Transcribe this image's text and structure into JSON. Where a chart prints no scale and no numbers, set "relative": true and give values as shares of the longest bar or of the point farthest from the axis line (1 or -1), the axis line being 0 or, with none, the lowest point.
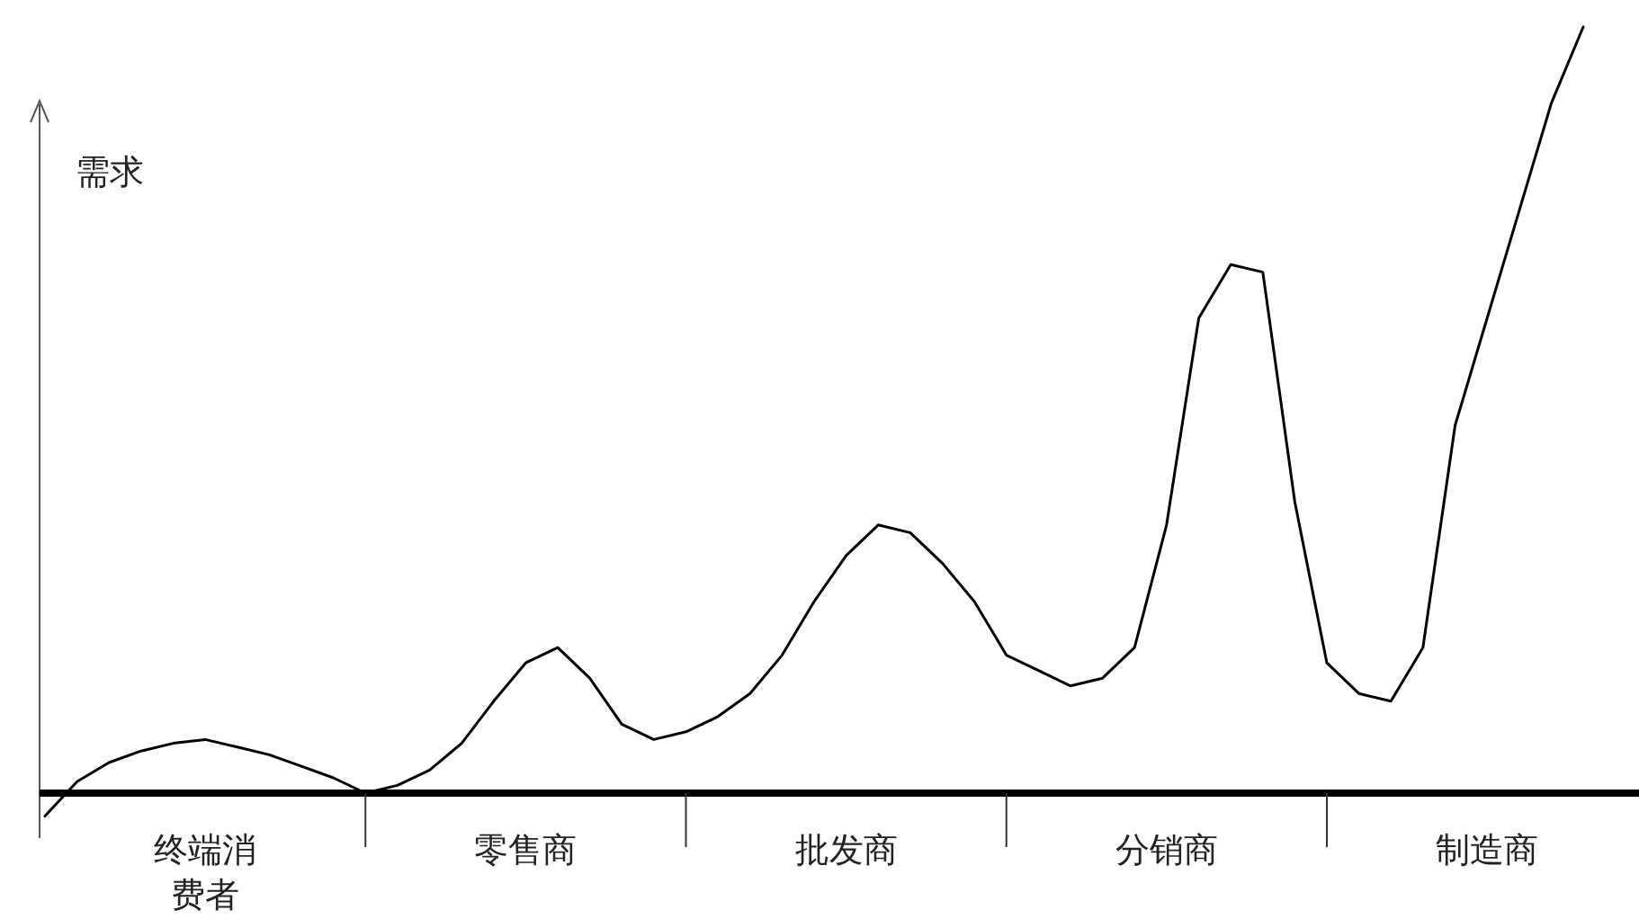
{
  "chart_data": {
    "type": "line",
    "relative": true,
    "ylabel": "需求",
    "categories": [
      null,
      null,
      null,
      null,
      null,
      "终端消费者",
      null,
      null,
      null,
      null,
      null,
      null,
      null,
      null,
      null,
      "零售商",
      null,
      null,
      null,
      null,
      null,
      null,
      null,
      null,
      null,
      "批发商",
      null,
      null,
      null,
      null,
      null,
      null,
      null,
      null,
      null,
      "分销商",
      null,
      null,
      null,
      null,
      null,
      null,
      null,
      null,
      null,
      "制造商",
      null,
      null,
      null
    ],
    "series": [
      {
        "color": "#000000",
        "values": [
          -0.03,
          0.015,
          0.04,
          0.055,
          0.065,
          0.07,
          0.06,
          0.05,
          0.035,
          0.02,
          0.0,
          0.01,
          0.03,
          0.065,
          0.12,
          0.17,
          0.19,
          0.15,
          0.09,
          0.07,
          0.08,
          0.1,
          0.13,
          0.18,
          0.25,
          0.31,
          0.35,
          0.34,
          0.3,
          0.25,
          0.18,
          0.16,
          0.14,
          0.15,
          0.19,
          0.35,
          0.62,
          0.69,
          0.68,
          0.38,
          0.17,
          0.13,
          0.12,
          0.19,
          0.48,
          0.62,
          0.76,
          0.9,
          1.0
        ]
      }
    ],
    "marker": "none",
    "line_style": "solid"
  }
}
